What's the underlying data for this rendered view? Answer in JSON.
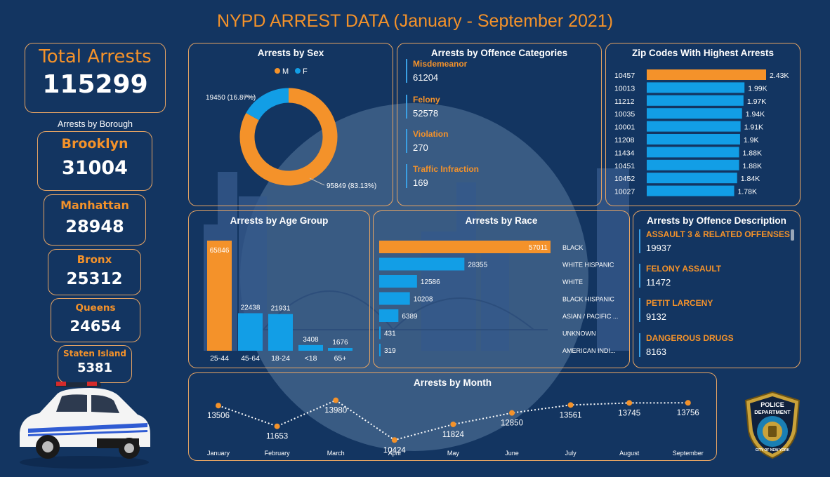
{
  "title": "NYPD ARREST DATA (January - September 2021)",
  "total": {
    "label": "Total Arrests",
    "value": "115299"
  },
  "borough": {
    "heading": "Arrests by Borough",
    "items": [
      {
        "name": "Brooklyn",
        "value": "31004"
      },
      {
        "name": "Manhattan",
        "value": "28948"
      },
      {
        "name": "Bronx",
        "value": "25312"
      },
      {
        "name": "Queens",
        "value": "24654"
      },
      {
        "name": "Staten Island",
        "value": "5381"
      }
    ]
  },
  "categories": {
    "title": "Arrests by Offence Categories",
    "items": [
      {
        "label": "Misdemeanor",
        "value": "61204"
      },
      {
        "label": "Felony",
        "value": "52578"
      },
      {
        "label": "Violation",
        "value": "270"
      },
      {
        "label": "Traffic Infraction",
        "value": "169"
      }
    ]
  },
  "descriptions": {
    "title": "Arrests by Offence Description",
    "items": [
      {
        "label": "ASSAULT 3 & RELATED OFFENSES",
        "value": "19937"
      },
      {
        "label": "FELONY ASSAULT",
        "value": "11472"
      },
      {
        "label": "PETIT LARCENY",
        "value": "9132"
      },
      {
        "label": "DANGEROUS DRUGS",
        "value": "8163"
      }
    ]
  },
  "badge": {
    "top": "POLICE",
    "mid": "DEPARTMENT",
    "bottom": "CITY OF NEW YORK"
  },
  "colors": {
    "orange": "#f4922a",
    "blue": "#129ee6",
    "bg": "#133561",
    "border": "#e7a463"
  },
  "chart_data": [
    {
      "type": "pie",
      "title": "Arrests by Sex",
      "legend": [
        "M",
        "F"
      ],
      "legend_position": "top",
      "slices": [
        {
          "name": "M",
          "value": 95849,
          "label": "95849 (83.13%)",
          "color": "#f4922a"
        },
        {
          "name": "F",
          "value": 19450,
          "label": "19450 (16.87%)",
          "color": "#129ee6"
        }
      ]
    },
    {
      "type": "bar",
      "title": "Zip Codes With Highest Arrests",
      "orientation": "horizontal",
      "categories": [
        "10457",
        "10013",
        "11212",
        "10035",
        "10001",
        "11208",
        "11434",
        "10451",
        "10452",
        "10027"
      ],
      "values": [
        2430,
        1990,
        1970,
        1940,
        1910,
        1900,
        1880,
        1880,
        1840,
        1780
      ],
      "value_labels": [
        "2.43K",
        "1.99K",
        "1.97K",
        "1.94K",
        "1.91K",
        "1.9K",
        "1.88K",
        "1.88K",
        "1.84K",
        "1.78K"
      ],
      "highlight_index": 0
    },
    {
      "type": "bar",
      "title": "Arrests by Age Group",
      "orientation": "vertical",
      "categories": [
        "25-44",
        "45-64",
        "18-24",
        "<18",
        "65+"
      ],
      "values": [
        65846,
        22438,
        21931,
        3408,
        1676
      ],
      "highlight_index": 0
    },
    {
      "type": "bar",
      "title": "Arrests by Race",
      "orientation": "horizontal",
      "categories": [
        "BLACK",
        "WHITE HISPANIC",
        "WHITE",
        "BLACK HISPANIC",
        "ASIAN / PACIFIC ...",
        "UNKNOWN",
        "AMERICAN INDI..."
      ],
      "values": [
        57011,
        28355,
        12586,
        10208,
        6389,
        431,
        319
      ],
      "highlight_index": 0
    },
    {
      "type": "line",
      "title": "Arrests by Month",
      "x": [
        "January",
        "February",
        "March",
        "April",
        "May",
        "June",
        "July",
        "August",
        "September"
      ],
      "values": [
        13506,
        11653,
        13980,
        10424,
        11824,
        12850,
        13561,
        13745,
        13756
      ],
      "line_style": "dotted"
    }
  ]
}
